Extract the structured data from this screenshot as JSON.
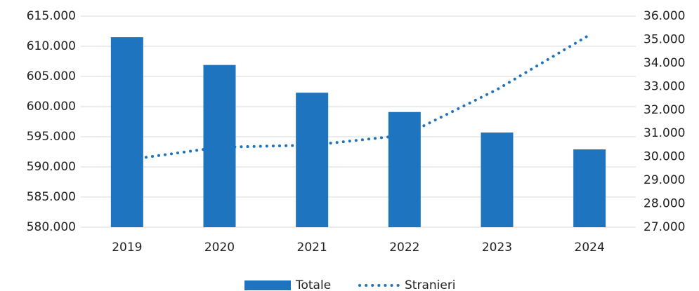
{
  "chart_data": {
    "type": "bar",
    "categories": [
      "2019",
      "2020",
      "2021",
      "2022",
      "2023",
      "2024"
    ],
    "series": [
      {
        "name": "Totale",
        "color": "#1f74c0",
        "values": [
          611500,
          606900,
          602300,
          599100,
          595700,
          592900
        ]
      },
      {
        "name": "Stranieri",
        "color": "#1f74c0",
        "type": "line",
        "line_style": "dotted",
        "axis": "y2",
        "values": [
          29870,
          30410,
          30500,
          30920,
          32870,
          35200
        ]
      }
    ],
    "ylim": [
      580000,
      615000
    ],
    "yticks": [
      {
        "value": 580000,
        "label": "580.000"
      },
      {
        "value": 585000,
        "label": "585.000"
      },
      {
        "value": 590000,
        "label": "590.000"
      },
      {
        "value": 595000,
        "label": "595.000"
      },
      {
        "value": 600000,
        "label": "600.000"
      },
      {
        "value": 605000,
        "label": "605.000"
      },
      {
        "value": 610000,
        "label": "610.000"
      },
      {
        "value": 615000,
        "label": "615.000"
      }
    ],
    "y2lim": [
      27000,
      36000
    ],
    "y2ticks": [
      {
        "value": 27000,
        "label": "27.000"
      },
      {
        "value": 28000,
        "label": "28.000"
      },
      {
        "value": 29000,
        "label": "29.000"
      },
      {
        "value": 30000,
        "label": "30.000"
      },
      {
        "value": 31000,
        "label": "31.000"
      },
      {
        "value": 32000,
        "label": "32.000"
      },
      {
        "value": 33000,
        "label": "33.000"
      },
      {
        "value": 34000,
        "label": "34.000"
      },
      {
        "value": 35000,
        "label": "35.000"
      },
      {
        "value": 36000,
        "label": "36.000"
      }
    ],
    "grid": true,
    "legend": "bottom"
  }
}
